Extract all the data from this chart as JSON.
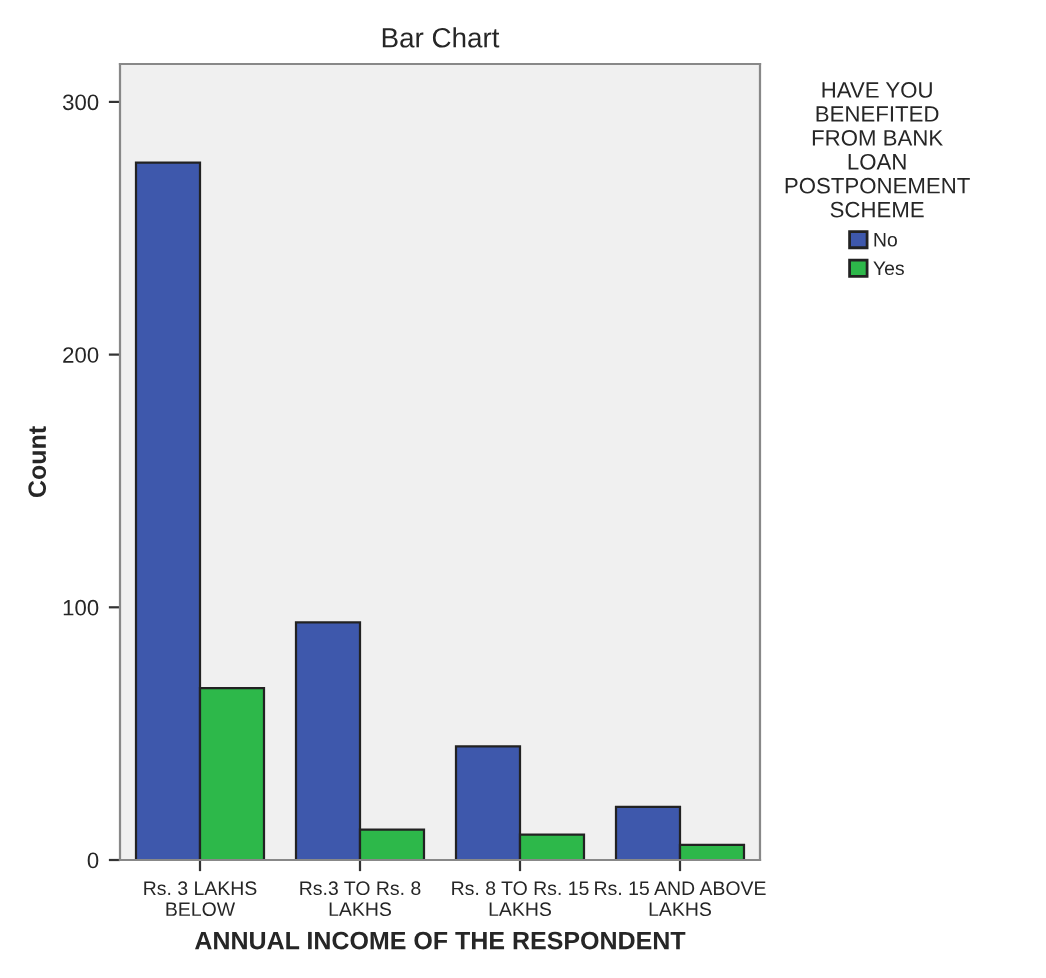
{
  "chart_data": {
    "type": "bar",
    "title": "Bar Chart",
    "xlabel": "ANNUAL INCOME OF THE RESPONDENT",
    "ylabel": "Count",
    "legend_title": "HAVE YOU\nBENEFITED\nFROM BANK\nLOAN\nPOSTPONEMENT\nSCHEME",
    "categories": [
      "Rs. 3 LAKHS\nBELOW",
      "Rs.3 TO Rs. 8\nLAKHS",
      "Rs. 8 TO Rs. 15\nLAKHS",
      "Rs. 15 AND ABOVE\nLAKHS"
    ],
    "series": [
      {
        "name": "No",
        "color": "#3e58ac",
        "values": [
          276,
          94,
          45,
          21
        ]
      },
      {
        "name": "Yes",
        "color": "#2db84a",
        "values": [
          68,
          12,
          10,
          6
        ]
      }
    ],
    "ylim": [
      0,
      315
    ],
    "yticks": [
      0,
      100,
      200,
      300
    ],
    "grid": false,
    "legend": "right"
  }
}
